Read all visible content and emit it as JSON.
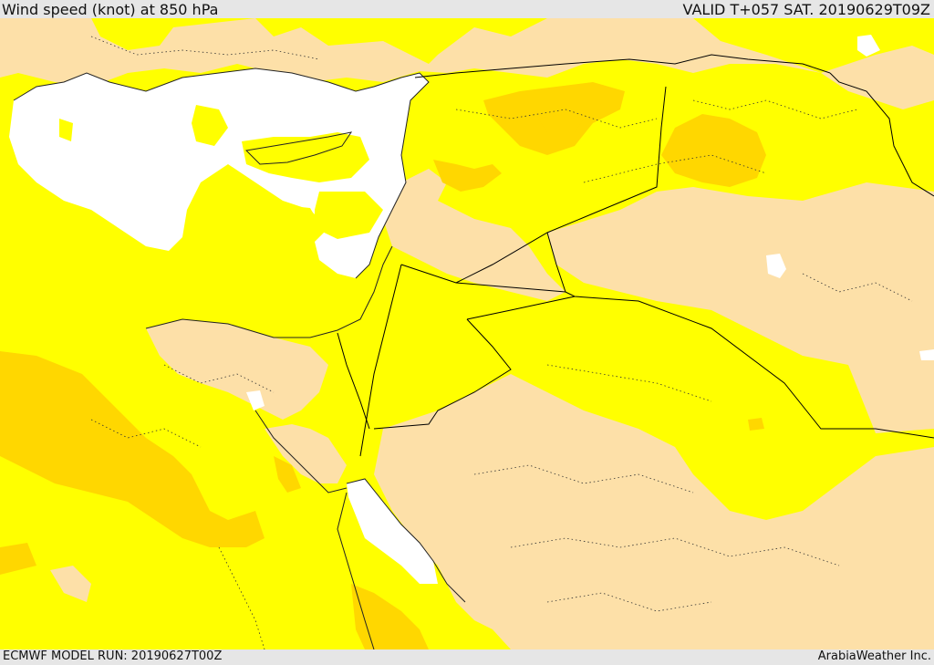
{
  "header": {
    "title": "Wind speed (knot) at 850 hPa",
    "valid": "VALID T+057 SAT. 20190629T09Z"
  },
  "footer": {
    "model_run": "ECMWF MODEL RUN: 20190627T00Z",
    "credit": "ArabiaWeather Inc."
  },
  "colors": {
    "sea_white": "#ffffff",
    "wind_light": "#fde0a8",
    "wind_moderate": "#ffff00",
    "wind_strong": "#ffd700",
    "coast": "#222222",
    "border": "#000000",
    "province_line": "#333333"
  },
  "legend_levels": [
    "white",
    "light tan",
    "yellow",
    "gold"
  ]
}
